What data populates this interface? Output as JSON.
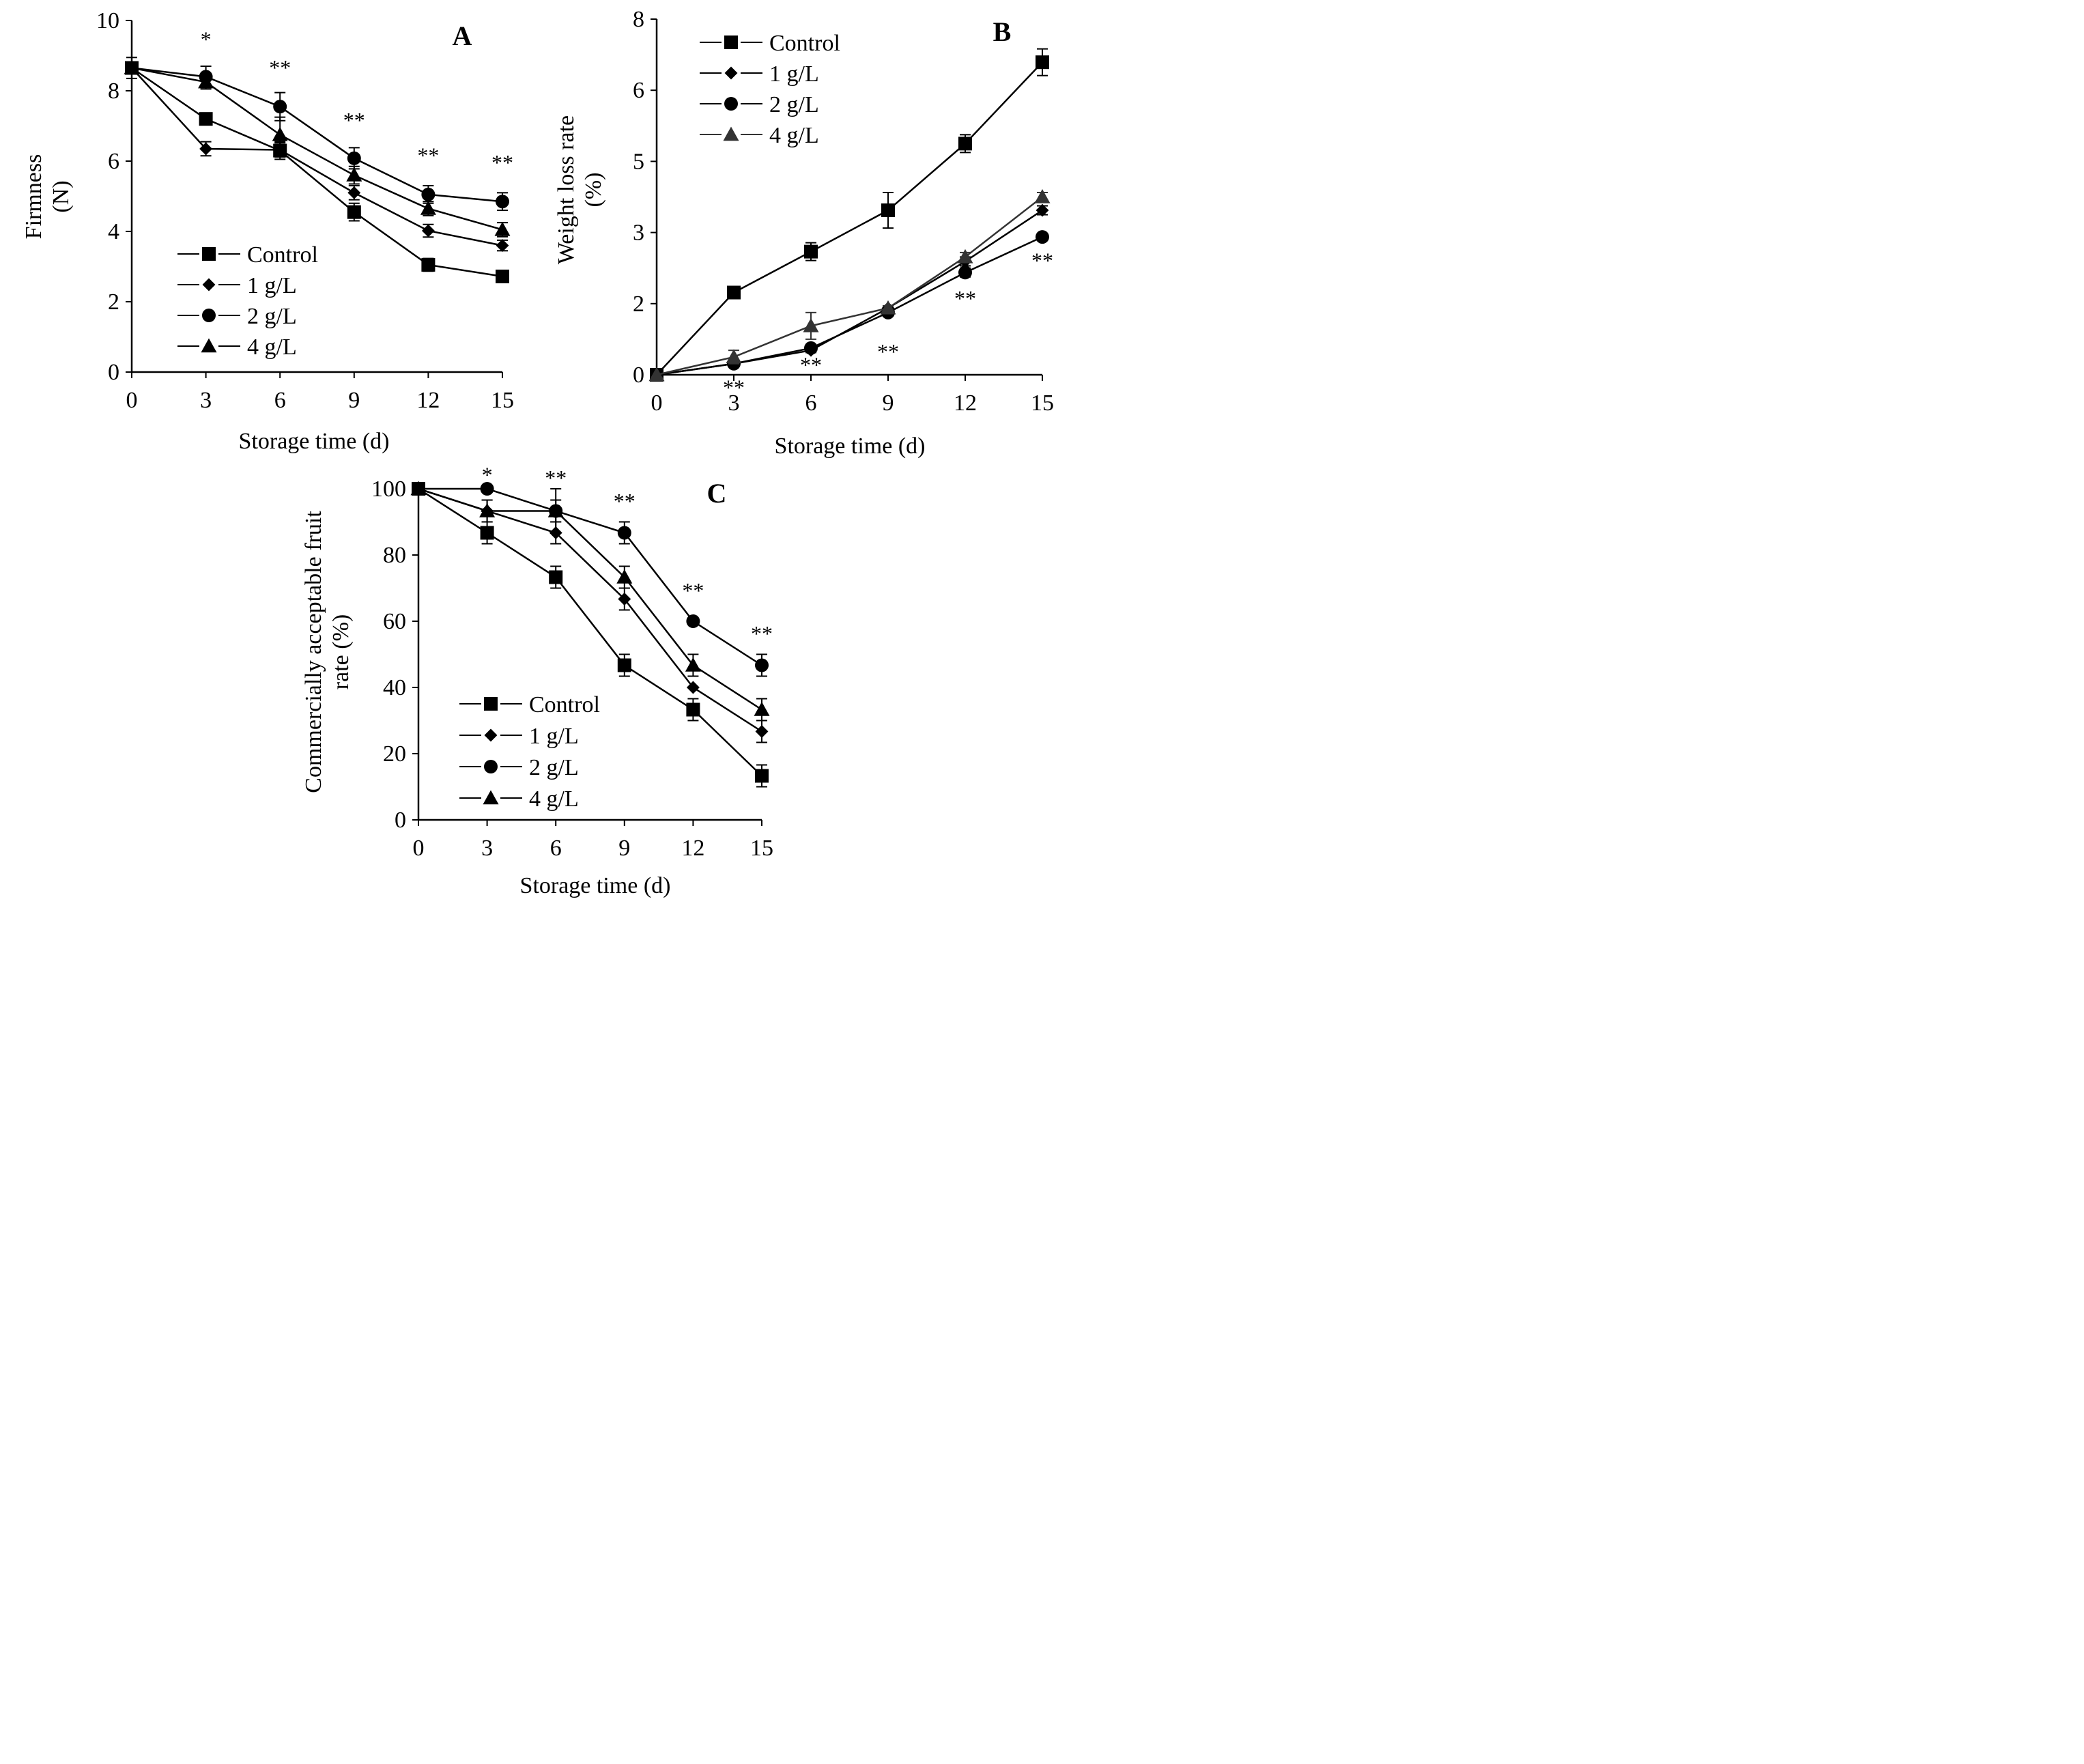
{
  "chart_data": [
    {
      "id": "A",
      "type": "line",
      "panel_label": "A",
      "xlabel": "Storage time (d)",
      "ylabel": [
        "Firmness",
        "(N)"
      ],
      "x": [
        0,
        3,
        6,
        9,
        12,
        15
      ],
      "xlim": [
        0,
        15
      ],
      "ylim": [
        0,
        10
      ],
      "yticks": [
        "0",
        "2",
        "4",
        "6",
        "8",
        "10"
      ],
      "xticks": [
        "0",
        "3",
        "6",
        "9",
        "12",
        "15"
      ],
      "grid": false,
      "legend_position": "bottom-left",
      "series": [
        {
          "name": "Control",
          "marker": "square",
          "values": [
            8.65,
            7.2,
            6.3,
            4.55,
            3.05,
            2.72
          ],
          "errors": [
            0.3,
            0.15,
            0.25,
            0.25,
            0.18,
            0.15
          ]
        },
        {
          "name": "1 g/L",
          "marker": "diamond",
          "values": [
            8.65,
            6.35,
            6.32,
            5.1,
            4.02,
            3.6
          ],
          "errors": [
            0.3,
            0.2,
            0.2,
            0.2,
            0.18,
            0.15
          ]
        },
        {
          "name": "2 g/L",
          "marker": "circle",
          "values": [
            8.65,
            8.4,
            7.55,
            6.08,
            5.05,
            4.85
          ],
          "errors": [
            0.3,
            0.3,
            0.4,
            0.3,
            0.25,
            0.25
          ]
        },
        {
          "name": "4 g/L",
          "marker": "triangle",
          "values": [
            8.65,
            8.25,
            6.75,
            5.6,
            4.65,
            4.05
          ],
          "errors": [
            0.3,
            0.2,
            0.5,
            0.25,
            0.2,
            0.2
          ]
        }
      ],
      "annotations": [
        {
          "x": 3,
          "y": 9.25,
          "text": "*"
        },
        {
          "x": 6,
          "y": 8.45,
          "text": "**"
        },
        {
          "x": 9,
          "y": 6.95,
          "text": "**"
        },
        {
          "x": 12,
          "y": 5.95,
          "text": "**"
        },
        {
          "x": 15,
          "y": 5.75,
          "text": "**"
        }
      ]
    },
    {
      "id": "B",
      "type": "line",
      "panel_label": "B",
      "xlabel": "Storage time (d)",
      "ylabel": [
        "Weight loss rate",
        "(%)"
      ],
      "x": [
        0,
        3,
        6,
        9,
        12,
        15
      ],
      "xlim": [
        0,
        15
      ],
      "ylim": [
        0,
        8
      ],
      "yticks": [
        "0",
        "2",
        "3",
        "5",
        "6",
        "8"
      ],
      "xticks": [
        "0",
        "3",
        "6",
        "9",
        "12",
        "15"
      ],
      "grid": false,
      "legend_position": "top-left",
      "series": [
        {
          "name": "Control",
          "marker": "square",
          "values": [
            0,
            1.85,
            2.77,
            3.7,
            5.2,
            7.03
          ],
          "errors": [
            0,
            0.1,
            0.2,
            0.4,
            0.2,
            0.3
          ]
        },
        {
          "name": "1 g/L",
          "marker": "diamond",
          "values": [
            0,
            0.25,
            0.55,
            1.5,
            2.55,
            3.7
          ],
          "errors": [
            0,
            0.05,
            0.05,
            0.05,
            0.1,
            0.1
          ]
        },
        {
          "name": "2 g/L",
          "marker": "circle",
          "values": [
            0,
            0.25,
            0.6,
            1.4,
            2.3,
            3.1
          ],
          "errors": [
            0,
            0.05,
            0.05,
            0.05,
            0.1,
            0.08
          ]
        },
        {
          "name": "4 g/L",
          "marker": "triangle",
          "values": [
            0,
            0.4,
            1.1,
            1.5,
            2.65,
            4.0
          ],
          "errors": [
            0,
            0.15,
            0.3,
            0.05,
            0.1,
            0.1
          ]
        }
      ],
      "annotations": [
        {
          "x": 3,
          "y": -0.45,
          "text": "**"
        },
        {
          "x": 6,
          "y": 0.05,
          "text": "**"
        },
        {
          "x": 9,
          "y": 0.35,
          "text": "**"
        },
        {
          "x": 12,
          "y": 1.55,
          "text": "**"
        },
        {
          "x": 15,
          "y": 2.4,
          "text": "**"
        }
      ]
    },
    {
      "id": "C",
      "type": "line",
      "panel_label": "C",
      "xlabel": "Storage time (d)",
      "ylabel": [
        "Commercially acceptable fruit",
        "rate (%)"
      ],
      "x": [
        0,
        3,
        6,
        9,
        12,
        15
      ],
      "xlim": [
        0,
        15
      ],
      "ylim": [
        0,
        100
      ],
      "yticks": [
        "0",
        "20",
        "40",
        "60",
        "80",
        "100"
      ],
      "xticks": [
        "0",
        "3",
        "6",
        "9",
        "12",
        "15"
      ],
      "grid": false,
      "legend_position": "bottom-left",
      "series": [
        {
          "name": "Control",
          "marker": "square",
          "values": [
            100,
            86.7,
            73.3,
            46.7,
            33.3,
            13.3
          ],
          "errors": [
            0,
            3.3,
            3.3,
            3.3,
            3.3,
            3.3
          ]
        },
        {
          "name": "1 g/L",
          "marker": "diamond",
          "values": [
            100,
            93.3,
            86.7,
            66.7,
            40,
            26.7
          ],
          "errors": [
            0,
            3.3,
            3.3,
            3.3,
            0,
            3.3
          ]
        },
        {
          "name": "2 g/L",
          "marker": "circle",
          "values": [
            100,
            100,
            93.3,
            86.7,
            60,
            46.7
          ],
          "errors": [
            0,
            0,
            6.7,
            3.3,
            0,
            3.3
          ]
        },
        {
          "name": "4 g/L",
          "marker": "triangle",
          "values": [
            100,
            93.3,
            93.3,
            73.3,
            46.7,
            33.3
          ],
          "errors": [
            0,
            3.3,
            3.3,
            3.3,
            3.3,
            3.3
          ]
        }
      ],
      "annotations": [
        {
          "x": 3,
          "y": 102,
          "text": "*"
        },
        {
          "x": 6,
          "y": 101,
          "text": "**"
        },
        {
          "x": 9,
          "y": 94,
          "text": "**"
        },
        {
          "x": 12,
          "y": 67,
          "text": "**"
        },
        {
          "x": 15,
          "y": 54,
          "text": "**"
        }
      ]
    }
  ]
}
